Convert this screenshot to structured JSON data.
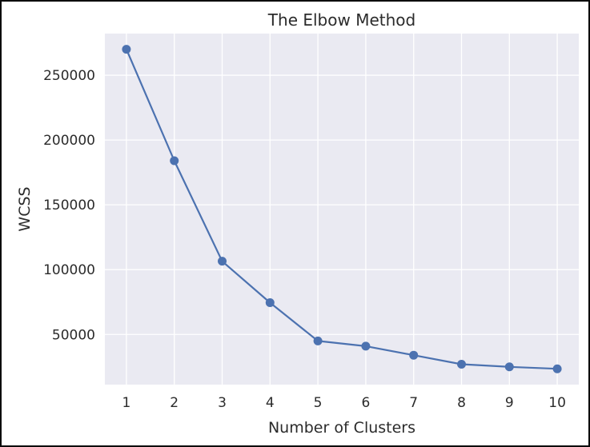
{
  "chart_data": {
    "type": "line",
    "title": "The Elbow Method",
    "xlabel": "Number of Clusters",
    "ylabel": "WCSS",
    "x": [
      1,
      2,
      3,
      4,
      5,
      6,
      7,
      8,
      9,
      10
    ],
    "series": [
      {
        "values": [
          270000,
          184000,
          106500,
          74500,
          45000,
          41000,
          34000,
          27000,
          25000,
          23500
        ],
        "color": "#4c72b0"
      }
    ],
    "xticks": [
      "1",
      "2",
      "3",
      "4",
      "5",
      "6",
      "7",
      "8",
      "9",
      "10"
    ],
    "yticks": [
      50000,
      100000,
      150000,
      200000,
      250000
    ],
    "ytick_labels": [
      "50000",
      "100000",
      "150000",
      "200000",
      "250000"
    ],
    "xlim": [
      0.55,
      10.45
    ],
    "ylim": [
      11300,
      282100
    ],
    "grid": true,
    "style": {
      "plot_background": "#eaeaf2",
      "grid_color": "#ffffff",
      "marker": "circle"
    }
  }
}
